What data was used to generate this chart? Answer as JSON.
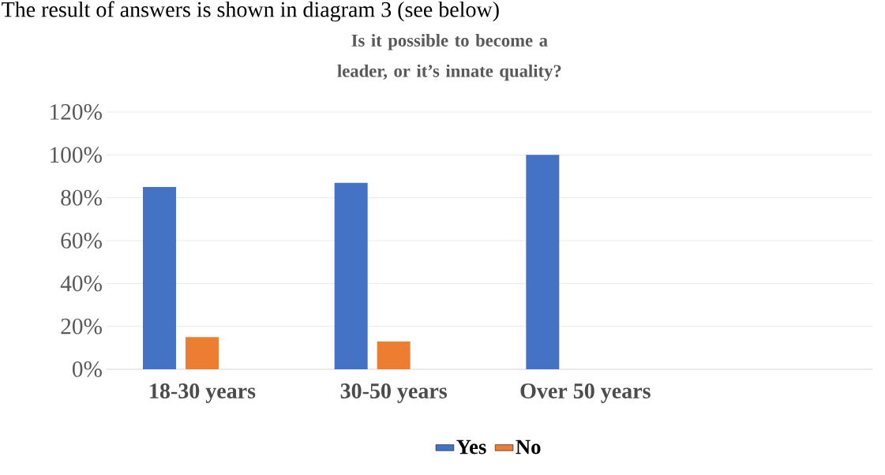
{
  "chart_data": {
    "type": "bar",
    "title": "Is it possible to become a leader, or it’s innate quality?",
    "annotations": [
      "The result of answers is shown in diagram 3 (see below)"
    ],
    "categories": [
      "18-30 years",
      "30-50 years",
      "Over 50 years",
      null
    ],
    "series": [
      {
        "name": "Yes",
        "color": "#4472c4",
        "values": [
          85,
          87,
          100,
          null
        ]
      },
      {
        "name": "No",
        "color": "#ed7d31",
        "values": [
          15,
          13,
          0,
          null
        ]
      }
    ],
    "ylim": [
      0,
      120
    ],
    "yticks": [
      {
        "value": 0,
        "label": "0%"
      },
      {
        "value": 20,
        "label": "20%"
      },
      {
        "value": 40,
        "label": "40%"
      },
      {
        "value": 60,
        "label": "60%"
      },
      {
        "value": 80,
        "label": "80%"
      },
      {
        "value": 100,
        "label": "100%"
      },
      {
        "value": 120,
        "label": "120%"
      }
    ],
    "grid": "y",
    "legend": "bottom"
  }
}
